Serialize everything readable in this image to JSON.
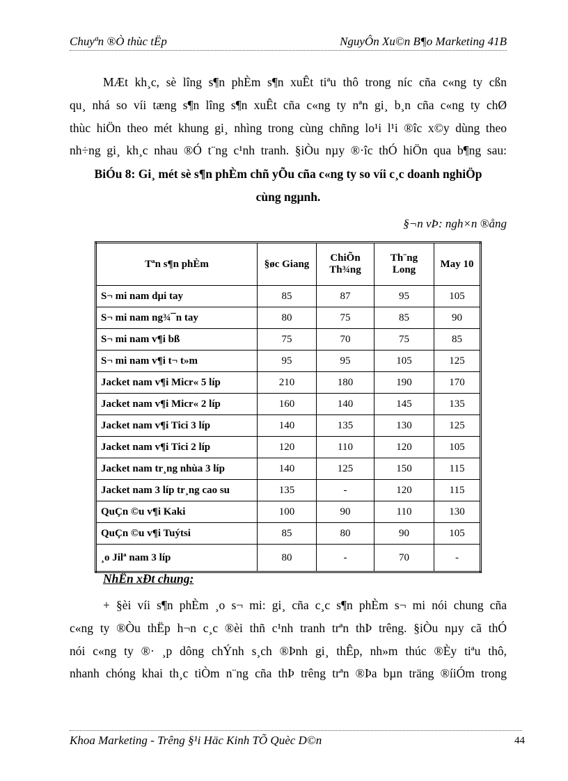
{
  "header": {
    "left": "Chuyªn ®Ò thùc tËp",
    "right": "NguyÔn Xu©n B¶o Marketing 41B"
  },
  "paragraph1": [
    "MÆt kh¸c, sè lîng  s¶n phÈm s¶n xuÊt tiªu thô trong níc  cña c«ng ty cßn",
    "qu¸ nhá so víi tæng s¶n lîng  s¶n xuÊt cña c«ng ty nªn gi¸ b¸n cña c«ng ty chØ",
    "thùc hiÖn theo mét khung gi¸ nhìng  trong cùng chñng lo¹i l¹i ®îc  x©y dùng theo",
    "nh÷ng gi¸ kh¸c nhau  ®Ó t¨ng c¹nh tranh. §iÒu nµy ®·îc thÓ hiÖn qua b¶ng sau:"
  ],
  "title": [
    "BiÓu 8: Gi¸ mét sè s¶n phÈm chñ yÕu cña c«ng ty so víi c¸c doanh nghiÖp",
    "cùng ngµnh."
  ],
  "unit": "§¬n vÞ: ngh×n ®ång",
  "table": {
    "headers": [
      "Tªn s¶n phÈm",
      "§øc Giang",
      "ChiÕn Th¾ng",
      "Th¨ng Long",
      "May 10"
    ],
    "rows": [
      [
        "S¬ mi nam dµi tay",
        "85",
        "87",
        "95",
        "105"
      ],
      [
        "S¬ mi nam ng¾¯n tay",
        "80",
        "75",
        "85",
        "90"
      ],
      [
        "S¬ mi nam v¶i bß",
        "75",
        "70",
        "75",
        "85"
      ],
      [
        "S¬ mi nam v¶i t¬ t»m",
        "95",
        "95",
        "105",
        "125"
      ],
      [
        "Jacket nam  v¶i Micr« 5 líp",
        "210",
        "180",
        "190",
        "170"
      ],
      [
        "Jacket nam  v¶i Micr« 2 líp",
        "160",
        "140",
        "145",
        "135"
      ],
      [
        "Jacket nam  v¶i Tici 3 líp",
        "140",
        "135",
        "130",
        "125"
      ],
      [
        "Jacket nam  v¶i Tici 2 líp",
        "120",
        "110",
        "120",
        "105"
      ],
      [
        "Jacket nam  tr¸ng nhùa 3 líp",
        "140",
        "125",
        "150",
        "115"
      ],
      [
        "Jacket nam  3 líp tr¸ng  cao su",
        "135",
        "-",
        "120",
        "115"
      ],
      [
        "QuÇn ©u v¶i Kaki",
        "100",
        "90",
        "110",
        "130"
      ],
      [
        "QuÇn ©u v¶i Tuýtsi",
        "85",
        "80",
        "90",
        "105"
      ],
      [
        "¸o Jilª nam 3 líp",
        "80",
        "-",
        "70",
        "-"
      ]
    ]
  },
  "subheading": "NhËn xÐt chung:",
  "paragraph2": [
    "+ §èi víi  s¶n phÈm  ¸o s¬ mi:  gi¸  cña c¸c s¶n phÈm s¬ mi nói chung cña",
    "c«ng ty ®Òu thËp h¬n c¸c ®èi thñ c¹nh tranh trªn thÞ trêng.  §iÒu nµy cã thÓ",
    "nói  c«ng ty ®·  ¸p dông chÝnh s¸ch ®Þnh gi¸  thÊp, nh»m thúc ®Èy tiªu thô,",
    "nhanh chóng khai th¸c tiÒm n¨ng cña thÞ trêng  trªn ®Þa bµn träng ®íiÓm trong"
  ],
  "footer": {
    "left": "Khoa Marketing - Trêng  §¹i Häc Kinh TÕ Quèc D©n",
    "page": "44"
  }
}
